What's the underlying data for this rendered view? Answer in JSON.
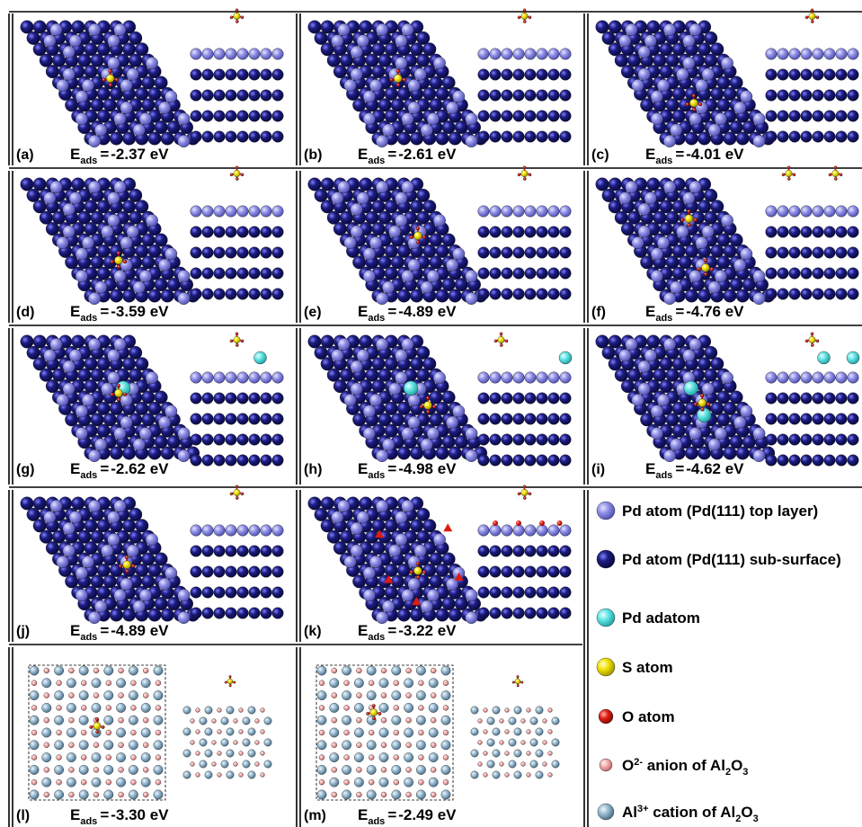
{
  "panels": [
    {
      "letter": "(a)",
      "value": "-2.37 eV",
      "label_gap": " ",
      "type": "pd",
      "top": "flat",
      "adsorbates": [
        {
          "kind": "so4",
          "ox": 0.5,
          "oy": 0.42
        }
      ],
      "adatoms": [],
      "side_ads": [
        "so4c"
      ],
      "side_adatoms": []
    },
    {
      "letter": "(b)",
      "value": "-2.61 eV",
      "type": "pd",
      "adsorbates": [
        {
          "kind": "so4",
          "ox": 0.5,
          "oy": 0.42
        }
      ],
      "adatoms": [],
      "side_ads": [
        "so4c"
      ],
      "side_adatoms": []
    },
    {
      "letter": "(c)",
      "value": "-4.01 eV",
      "type": "pd",
      "adsorbates": [
        {
          "kind": "so4",
          "ox": 0.55,
          "oy": 0.62
        }
      ],
      "adatoms": [],
      "side_ads": [
        "so4c"
      ],
      "side_adatoms": []
    },
    {
      "letter": "(d)",
      "value": "-3.59  eV",
      "type": "pd",
      "adsorbates": [
        {
          "kind": "so4",
          "ox": 0.55,
          "oy": 0.62
        }
      ],
      "adatoms": [],
      "side_ads": [
        "so4c"
      ],
      "side_adatoms": []
    },
    {
      "letter": "(e)",
      "value": "-4.89  eV",
      "type": "pd",
      "adsorbates": [
        {
          "kind": "so4",
          "ox": 0.62,
          "oy": 0.42
        }
      ],
      "adatoms": [],
      "side_ads": [
        "so4c"
      ],
      "side_adatoms": []
    },
    {
      "letter": "(f)",
      "value": "-4.76  eV",
      "type": "pd",
      "adsorbates": [
        {
          "kind": "so4",
          "ox": 0.52,
          "oy": 0.28
        },
        {
          "kind": "so4",
          "ox": 0.62,
          "oy": 0.68
        }
      ],
      "adatoms": [],
      "side_ads": [
        "so4l",
        "so4r"
      ],
      "side_adatoms": []
    },
    {
      "letter": "(g)",
      "value": "-2.62  eV",
      "type": "pd",
      "adsorbates": [
        {
          "kind": "so4",
          "ox": 0.55,
          "oy": 0.42
        }
      ],
      "adatoms": [
        {
          "ox": 0.52,
          "oy": 0.38
        }
      ],
      "side_ads": [
        "so4c"
      ],
      "side_adatoms": [
        "c"
      ]
    },
    {
      "letter": "(h)",
      "value": "-4.98  eV",
      "type": "pd",
      "adsorbates": [
        {
          "kind": "so4",
          "ox": 0.68,
          "oy": 0.52
        }
      ],
      "adatoms": [
        {
          "ox": 0.52,
          "oy": 0.38
        }
      ],
      "side_ads": [
        "so4l"
      ],
      "side_adatoms": [
        "r"
      ]
    },
    {
      "letter": "(i)",
      "value": "-4.62  eV",
      "type": "pd",
      "adsorbates": [
        {
          "kind": "so4",
          "ox": 0.6,
          "oy": 0.5
        }
      ],
      "adatoms": [
        {
          "ox": 0.48,
          "oy": 0.38
        },
        {
          "ox": 0.55,
          "oy": 0.6
        }
      ],
      "side_ads": [
        "so4c"
      ],
      "side_adatoms": [
        "l",
        "r"
      ]
    },
    {
      "letter": "(j)",
      "value": "-4.89  eV",
      "type": "pd",
      "adsorbates": [
        {
          "kind": "so4",
          "ox": 0.6,
          "oy": 0.5
        }
      ],
      "adatoms": [],
      "side_ads": [
        "so4c"
      ],
      "side_adatoms": []
    },
    {
      "letter": "(k)",
      "value": "-3.22  eV",
      "type": "pd",
      "adsorbates": [
        {
          "kind": "so4",
          "ox": 0.62,
          "oy": 0.55
        }
      ],
      "adatoms": [],
      "oxy": true,
      "side_ads": [
        "so4c"
      ],
      "side_adatoms": []
    },
    {
      "letter": "(l)",
      "value": "-3.30 eV",
      "type": "al",
      "adsorbates": [
        {
          "kind": "so4",
          "ox": 0.5,
          "oy": 0.45
        }
      ],
      "adatoms": [],
      "side_ads": [
        "so4c"
      ],
      "side_adatoms": []
    },
    {
      "letter": "(m)",
      "value": "-2.49  eV",
      "type": "al",
      "adsorbates": [
        {
          "kind": "so4",
          "ox": 0.42,
          "oy": 0.35
        }
      ],
      "adatoms": [],
      "side_ads": [
        "so4c"
      ],
      "side_adatoms": []
    }
  ],
  "energy_symbol": "E",
  "energy_subscript": "ads",
  "energy_equals": "=",
  "legend": [
    {
      "id": "pd-top",
      "text": "Pd atom (Pd(111) top layer)",
      "fill": "#8e8ee6",
      "stroke": "#5a5ab8"
    },
    {
      "id": "pd-sub",
      "text": "Pd atom (Pd(111) sub-surface)",
      "fill": "#1c1c80",
      "stroke": "#0a0a4a"
    },
    {
      "id": "pd-adatom",
      "text": "Pd adatom",
      "fill": "#5fe3e3",
      "stroke": "#2aa7a7"
    },
    {
      "id": "s-atom",
      "text": "S atom",
      "fill": "#f0e000",
      "stroke": "#a69a00"
    },
    {
      "id": "o-atom",
      "text": "O atom",
      "fill": "#e01b10",
      "stroke": "#8c0c06"
    },
    {
      "id": "o-anion",
      "pre": "O",
      "sup": "2-",
      "mid": " anion of Al",
      "sub": "2",
      "post": "O",
      "sub2": "3",
      "fill": "#f2a5a5",
      "stroke": "#c96b6b"
    },
    {
      "id": "al-cation",
      "pre": "Al",
      "sup": "3+",
      "mid": " cation of Al",
      "sub": "2",
      "post": "O",
      "sub2": "3",
      "fill": "#8fb2c9",
      "stroke": "#4c7590"
    }
  ],
  "colors": {
    "pd_top": "#8e8ee6",
    "pd_sub": "#1c1c80",
    "pd_adatom": "#5fe3e3",
    "s": "#f0e000",
    "o": "#e01b10",
    "o_anion": "#f2a5a5",
    "al": "#8fb2c9"
  }
}
